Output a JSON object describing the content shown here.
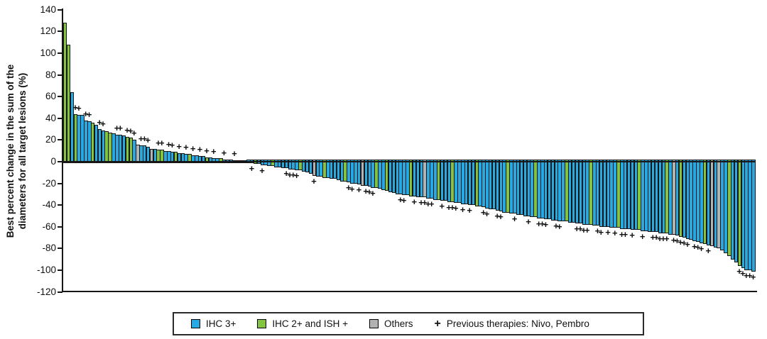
{
  "figure": {
    "background": "#ffffff"
  },
  "chart_data": {
    "type": "bar",
    "subtype": "waterfall",
    "title": "",
    "ylabel_line1": "Best percent change in the sum of the",
    "ylabel_line2": "diameters for all target lesions (%)",
    "ylim": [
      -120,
      140
    ],
    "yticks": [
      140,
      120,
      100,
      80,
      60,
      40,
      20,
      0,
      -20,
      -40,
      -60,
      -80,
      -100,
      -120
    ],
    "grid": false,
    "legend_position": "bottom",
    "colors": {
      "b": "#29A9E1",
      "g": "#85C441",
      "y": "#B3B3B3"
    },
    "color_meaning": {
      "b": "IHC 3+",
      "g": "IHC 2+ and ISH +",
      "y": "Others"
    },
    "marker_meaning": "Previous therapies: Nivo, Pembro",
    "legend": [
      {
        "type": "swatch",
        "color": "#29A9E1",
        "label": "IHC 3+"
      },
      {
        "type": "swatch",
        "color": "#85C441",
        "label": "IHC 2+ and ISH +"
      },
      {
        "type": "swatch",
        "color": "#B3B3B3",
        "label": "Others"
      },
      {
        "type": "marker",
        "symbol": "+",
        "label": "Previous therapies: Nivo, Pembro"
      }
    ],
    "bars": [
      {
        "v": 128,
        "c": "g"
      },
      {
        "v": 108,
        "c": "g"
      },
      {
        "v": 64,
        "c": "b"
      },
      {
        "v": 44,
        "c": "g",
        "p": 1
      },
      {
        "v": 43,
        "c": "b",
        "p": 1
      },
      {
        "v": 43,
        "c": "b"
      },
      {
        "v": 38,
        "c": "b",
        "p": 1
      },
      {
        "v": 37,
        "c": "b",
        "p": 1
      },
      {
        "v": 36,
        "c": "g"
      },
      {
        "v": 34,
        "c": "b"
      },
      {
        "v": 30,
        "c": "b",
        "p": 1
      },
      {
        "v": 29,
        "c": "b",
        "p": 1
      },
      {
        "v": 28,
        "c": "g"
      },
      {
        "v": 27,
        "c": "g"
      },
      {
        "v": 26,
        "c": "b"
      },
      {
        "v": 25,
        "c": "b",
        "p": 1
      },
      {
        "v": 25,
        "c": "b",
        "p": 1
      },
      {
        "v": 24,
        "c": "b"
      },
      {
        "v": 23,
        "c": "g",
        "p": 1
      },
      {
        "v": 22,
        "c": "g",
        "p": 1
      },
      {
        "v": 20,
        "c": "b",
        "p": 1
      },
      {
        "v": 16,
        "c": "y"
      },
      {
        "v": 15,
        "c": "b",
        "p": 1
      },
      {
        "v": 15,
        "c": "b",
        "p": 1
      },
      {
        "v": 14,
        "c": "b",
        "p": 1
      },
      {
        "v": 12,
        "c": "y"
      },
      {
        "v": 12,
        "c": "b"
      },
      {
        "v": 11,
        "c": "g",
        "p": 1
      },
      {
        "v": 11,
        "c": "g",
        "p": 1
      },
      {
        "v": 10,
        "c": "b"
      },
      {
        "v": 10,
        "c": "b",
        "p": 1
      },
      {
        "v": 9,
        "c": "b",
        "p": 1
      },
      {
        "v": 9,
        "c": "g"
      },
      {
        "v": 8,
        "c": "b",
        "p": 1
      },
      {
        "v": 8,
        "c": "b"
      },
      {
        "v": 7,
        "c": "b",
        "p": 1
      },
      {
        "v": 7,
        "c": "g"
      },
      {
        "v": 6,
        "c": "b",
        "p": 1
      },
      {
        "v": 6,
        "c": "b"
      },
      {
        "v": 5,
        "c": "b",
        "p": 1
      },
      {
        "v": 5,
        "c": "b"
      },
      {
        "v": 4,
        "c": "g",
        "p": 1
      },
      {
        "v": 4,
        "c": "b"
      },
      {
        "v": 3,
        "c": "b",
        "p": 1
      },
      {
        "v": 3,
        "c": "b"
      },
      {
        "v": 3,
        "c": "g"
      },
      {
        "v": 2,
        "c": "b",
        "p": 1
      },
      {
        "v": 2,
        "c": "b"
      },
      {
        "v": 2,
        "c": "b"
      },
      {
        "v": 1,
        "c": "b",
        "p": 1
      },
      {
        "v": 1,
        "c": "g"
      },
      {
        "v": 1,
        "c": "b"
      },
      {
        "v": 1,
        "c": "b"
      },
      {
        "v": -1,
        "c": "b"
      },
      {
        "v": -1,
        "c": "b",
        "p": 1
      },
      {
        "v": -2,
        "c": "g"
      },
      {
        "v": -2,
        "c": "b"
      },
      {
        "v": -3,
        "c": "b",
        "p": 1
      },
      {
        "v": -3,
        "c": "b"
      },
      {
        "v": -4,
        "c": "b"
      },
      {
        "v": -4,
        "c": "g"
      },
      {
        "v": -5,
        "c": "b"
      },
      {
        "v": -5,
        "c": "b"
      },
      {
        "v": -6,
        "c": "b"
      },
      {
        "v": -6,
        "c": "b",
        "p": 1
      },
      {
        "v": -7,
        "c": "b",
        "p": 1
      },
      {
        "v": -7,
        "c": "b",
        "p": 1
      },
      {
        "v": -8,
        "c": "b",
        "p": 1
      },
      {
        "v": -8,
        "c": "g"
      },
      {
        "v": -9,
        "c": "b"
      },
      {
        "v": -10,
        "c": "b"
      },
      {
        "v": -11,
        "c": "b"
      },
      {
        "v": -13,
        "c": "y",
        "p": 1
      },
      {
        "v": -14,
        "c": "b"
      },
      {
        "v": -14,
        "c": "b"
      },
      {
        "v": -15,
        "c": "g"
      },
      {
        "v": -15,
        "c": "b"
      },
      {
        "v": -16,
        "c": "b"
      },
      {
        "v": -16,
        "c": "b"
      },
      {
        "v": -17,
        "c": "b"
      },
      {
        "v": -18,
        "c": "b"
      },
      {
        "v": -18,
        "c": "g"
      },
      {
        "v": -19,
        "c": "b",
        "p": 1
      },
      {
        "v": -20,
        "c": "b",
        "p": 1
      },
      {
        "v": -20,
        "c": "b"
      },
      {
        "v": -21,
        "c": "b",
        "p": 1
      },
      {
        "v": -22,
        "c": "y"
      },
      {
        "v": -22,
        "c": "b",
        "p": 1
      },
      {
        "v": -23,
        "c": "b",
        "p": 1
      },
      {
        "v": -24,
        "c": "b",
        "p": 1
      },
      {
        "v": -24,
        "c": "g"
      },
      {
        "v": -25,
        "c": "b"
      },
      {
        "v": -26,
        "c": "b"
      },
      {
        "v": -27,
        "c": "g"
      },
      {
        "v": -28,
        "c": "b"
      },
      {
        "v": -29,
        "c": "b"
      },
      {
        "v": -30,
        "c": "b"
      },
      {
        "v": -30,
        "c": "b",
        "p": 1
      },
      {
        "v": -31,
        "c": "b",
        "p": 1
      },
      {
        "v": -31,
        "c": "b"
      },
      {
        "v": -32,
        "c": "g"
      },
      {
        "v": -32,
        "c": "b",
        "p": 1
      },
      {
        "v": -33,
        "c": "b"
      },
      {
        "v": -33,
        "c": "b",
        "p": 1
      },
      {
        "v": -33,
        "c": "y",
        "p": 1
      },
      {
        "v": -34,
        "c": "b",
        "p": 1
      },
      {
        "v": -34,
        "c": "b",
        "p": 1
      },
      {
        "v": -35,
        "c": "b"
      },
      {
        "v": -35,
        "c": "g"
      },
      {
        "v": -36,
        "c": "b",
        "p": 1
      },
      {
        "v": -36,
        "c": "b"
      },
      {
        "v": -37,
        "c": "b",
        "p": 1
      },
      {
        "v": -37,
        "c": "g",
        "p": 1
      },
      {
        "v": -38,
        "c": "b",
        "p": 1
      },
      {
        "v": -38,
        "c": "b"
      },
      {
        "v": -39,
        "c": "b",
        "p": 1
      },
      {
        "v": -39,
        "c": "b"
      },
      {
        "v": -40,
        "c": "b",
        "p": 1
      },
      {
        "v": -40,
        "c": "b"
      },
      {
        "v": -41,
        "c": "g"
      },
      {
        "v": -41,
        "c": "b"
      },
      {
        "v": -42,
        "c": "b",
        "p": 1
      },
      {
        "v": -43,
        "c": "b",
        "p": 1
      },
      {
        "v": -44,
        "c": "b"
      },
      {
        "v": -44,
        "c": "b"
      },
      {
        "v": -45,
        "c": "b",
        "p": 1
      },
      {
        "v": -46,
        "c": "b",
        "p": 1
      },
      {
        "v": -47,
        "c": "b"
      },
      {
        "v": -47,
        "c": "g"
      },
      {
        "v": -48,
        "c": "b"
      },
      {
        "v": -48,
        "c": "b",
        "p": 1
      },
      {
        "v": -49,
        "c": "b"
      },
      {
        "v": -49,
        "c": "b"
      },
      {
        "v": -50,
        "c": "b"
      },
      {
        "v": -50,
        "c": "b",
        "p": 1
      },
      {
        "v": -51,
        "c": "b"
      },
      {
        "v": -51,
        "c": "g"
      },
      {
        "v": -52,
        "c": "b",
        "p": 1
      },
      {
        "v": -52,
        "c": "b",
        "p": 1
      },
      {
        "v": -53,
        "c": "b",
        "p": 1
      },
      {
        "v": -53,
        "c": "b"
      },
      {
        "v": -54,
        "c": "b"
      },
      {
        "v": -54,
        "c": "b",
        "p": 1
      },
      {
        "v": -55,
        "c": "b",
        "p": 1
      },
      {
        "v": -55,
        "c": "b"
      },
      {
        "v": -55,
        "c": "g"
      },
      {
        "v": -56,
        "c": "b"
      },
      {
        "v": -56,
        "c": "b"
      },
      {
        "v": -57,
        "c": "b",
        "p": 1
      },
      {
        "v": -57,
        "c": "b",
        "p": 1
      },
      {
        "v": -58,
        "c": "b",
        "p": 1
      },
      {
        "v": -58,
        "c": "b",
        "p": 1
      },
      {
        "v": -58,
        "c": "g"
      },
      {
        "v": -59,
        "c": "b"
      },
      {
        "v": -59,
        "c": "b",
        "p": 1
      },
      {
        "v": -60,
        "c": "b",
        "p": 1
      },
      {
        "v": -60,
        "c": "b"
      },
      {
        "v": -60,
        "c": "b",
        "p": 1
      },
      {
        "v": -61,
        "c": "b"
      },
      {
        "v": -61,
        "c": "b",
        "p": 1
      },
      {
        "v": -61,
        "c": "g"
      },
      {
        "v": -62,
        "c": "b",
        "p": 1
      },
      {
        "v": -62,
        "c": "b",
        "p": 1
      },
      {
        "v": -62,
        "c": "b"
      },
      {
        "v": -63,
        "c": "b",
        "p": 1
      },
      {
        "v": -63,
        "c": "b"
      },
      {
        "v": -63,
        "c": "g"
      },
      {
        "v": -64,
        "c": "b",
        "p": 1
      },
      {
        "v": -64,
        "c": "b"
      },
      {
        "v": -65,
        "c": "b"
      },
      {
        "v": -65,
        "c": "b",
        "p": 1
      },
      {
        "v": -65,
        "c": "b",
        "p": 1
      },
      {
        "v": -66,
        "c": "b",
        "p": 1
      },
      {
        "v": -66,
        "c": "b",
        "p": 1
      },
      {
        "v": -66,
        "c": "g",
        "p": 1
      },
      {
        "v": -67,
        "c": "b"
      },
      {
        "v": -67,
        "c": "y",
        "p": 1
      },
      {
        "v": -68,
        "c": "b",
        "p": 1
      },
      {
        "v": -69,
        "c": "g",
        "p": 1
      },
      {
        "v": -70,
        "c": "b",
        "p": 1
      },
      {
        "v": -71,
        "c": "b",
        "p": 1
      },
      {
        "v": -72,
        "c": "b"
      },
      {
        "v": -73,
        "c": "b",
        "p": 1
      },
      {
        "v": -74,
        "c": "b",
        "p": 1
      },
      {
        "v": -75,
        "c": "b",
        "p": 1
      },
      {
        "v": -76,
        "c": "g"
      },
      {
        "v": -77,
        "c": "b",
        "p": 1
      },
      {
        "v": -78,
        "c": "y"
      },
      {
        "v": -79,
        "c": "b"
      },
      {
        "v": -80,
        "c": "y"
      },
      {
        "v": -82,
        "c": "b"
      },
      {
        "v": -84,
        "c": "b"
      },
      {
        "v": -87,
        "c": "g"
      },
      {
        "v": -90,
        "c": "b"
      },
      {
        "v": -93,
        "c": "b"
      },
      {
        "v": -96,
        "c": "g",
        "p": 1
      },
      {
        "v": -98,
        "c": "b",
        "p": 1
      },
      {
        "v": -100,
        "c": "b",
        "p": 1
      },
      {
        "v": -100,
        "c": "b",
        "p": 1
      },
      {
        "v": -101,
        "c": "b",
        "p": 1
      }
    ]
  }
}
